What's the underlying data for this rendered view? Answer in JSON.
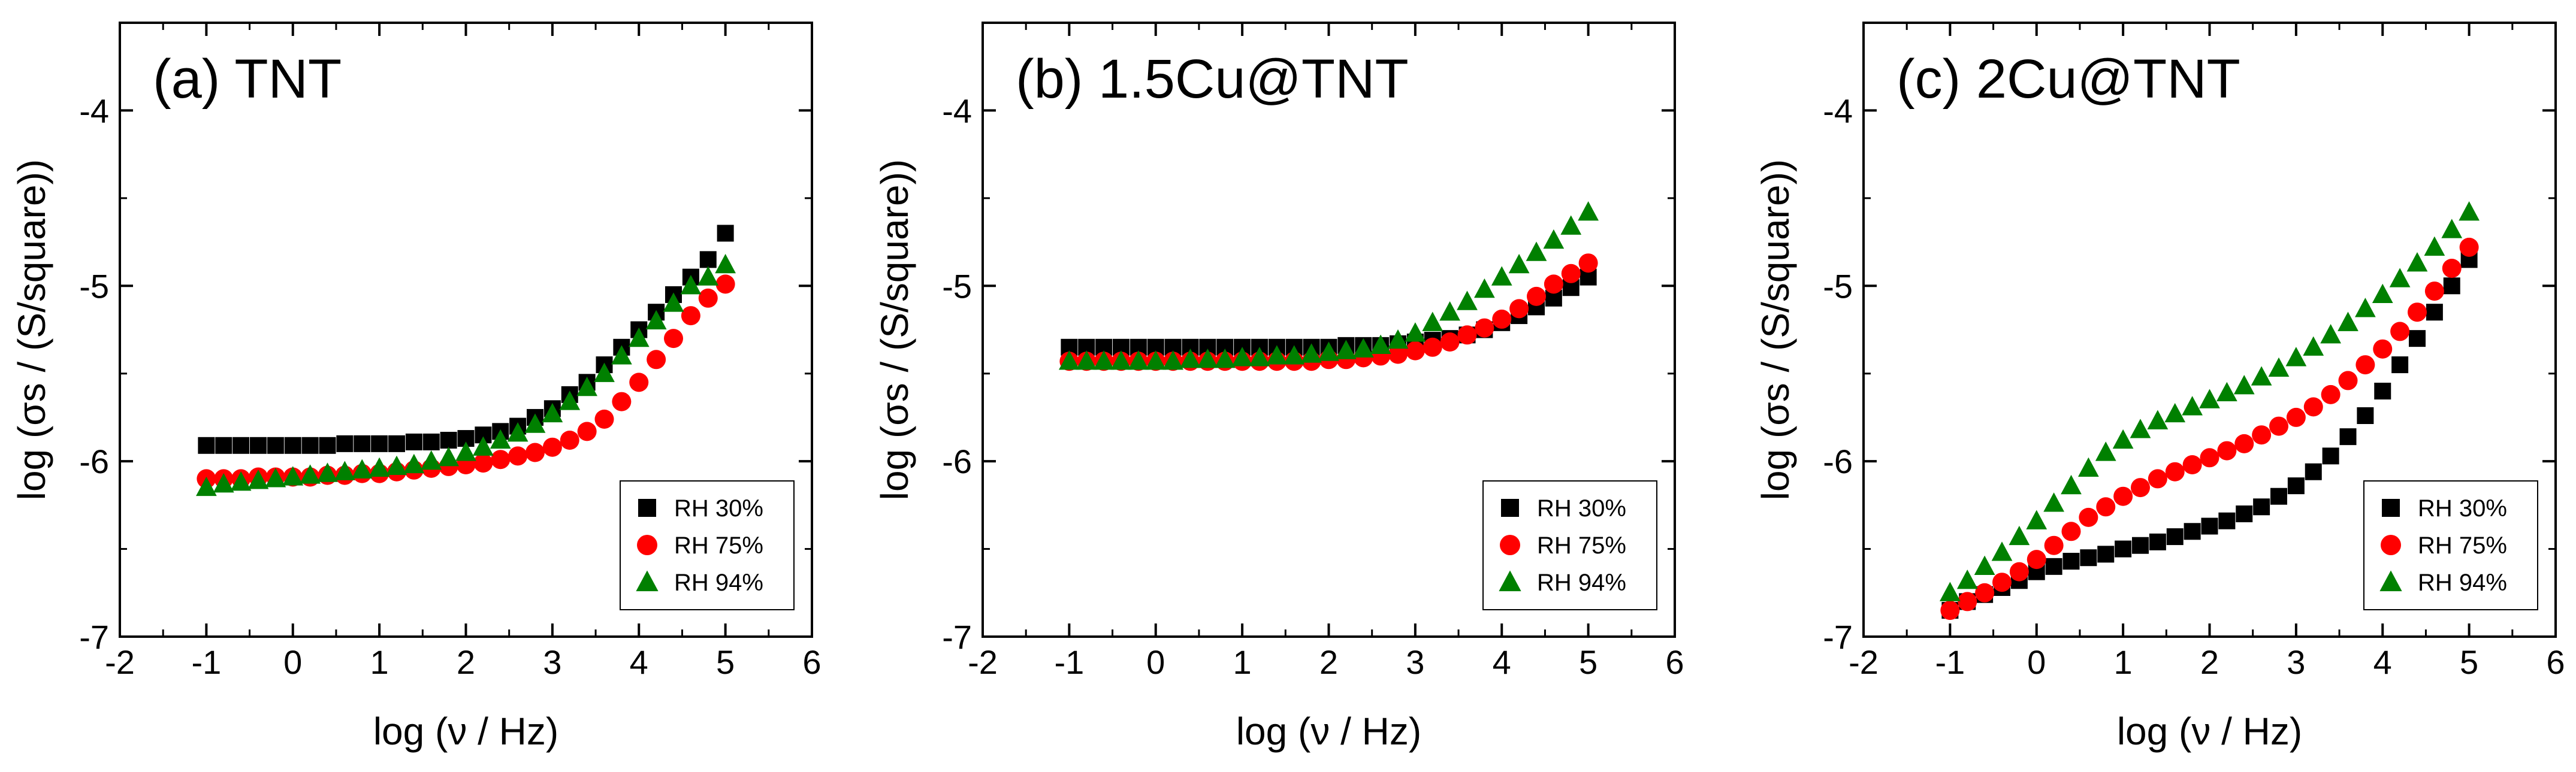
{
  "chart_data": [
    {
      "type": "scatter",
      "title": "(a) TNT",
      "xlabel": "log (ν / Hz)",
      "ylabel": "log (σs / (S/square))",
      "xlim": [
        -2,
        6
      ],
      "ylim": [
        -7,
        -3.5
      ],
      "x_ticks": [
        -2,
        -1,
        0,
        1,
        2,
        3,
        4,
        5,
        6
      ],
      "y_ticks": [
        -7,
        -6,
        -5,
        -4
      ],
      "x_tick_labels": [
        "-2",
        "-1",
        "0",
        "1",
        "2",
        "3",
        "4",
        "5",
        "6"
      ],
      "y_tick_labels": [
        "-7",
        "-6",
        "-5",
        "-4"
      ],
      "legend_position": "bottom-right",
      "series": [
        {
          "name": "RH 30%",
          "marker": "square",
          "color": "#000000",
          "x": [
            -1.0,
            -0.8,
            -0.6,
            -0.4,
            -0.2,
            0.0,
            0.2,
            0.4,
            0.6,
            0.8,
            1.0,
            1.2,
            1.4,
            1.6,
            1.8,
            2.0,
            2.2,
            2.4,
            2.6,
            2.8,
            3.0,
            3.2,
            3.4,
            3.6,
            3.8,
            4.0,
            4.2,
            4.4,
            4.6,
            4.8,
            5.0
          ],
          "y": [
            -5.91,
            -5.91,
            -5.91,
            -5.91,
            -5.91,
            -5.91,
            -5.91,
            -5.91,
            -5.9,
            -5.9,
            -5.9,
            -5.9,
            -5.89,
            -5.89,
            -5.88,
            -5.87,
            -5.85,
            -5.83,
            -5.8,
            -5.75,
            -5.7,
            -5.62,
            -5.55,
            -5.45,
            -5.35,
            -5.25,
            -5.15,
            -5.05,
            -4.95,
            -4.85,
            -4.7
          ]
        },
        {
          "name": "RH 75%",
          "marker": "circle",
          "color": "#ff0000",
          "x": [
            -1.0,
            -0.8,
            -0.6,
            -0.4,
            -0.2,
            0.0,
            0.2,
            0.4,
            0.6,
            0.8,
            1.0,
            1.2,
            1.4,
            1.6,
            1.8,
            2.0,
            2.2,
            2.4,
            2.6,
            2.8,
            3.0,
            3.2,
            3.4,
            3.6,
            3.8,
            4.0,
            4.2,
            4.4,
            4.6,
            4.8,
            5.0
          ],
          "y": [
            -6.1,
            -6.1,
            -6.1,
            -6.09,
            -6.09,
            -6.09,
            -6.09,
            -6.08,
            -6.08,
            -6.07,
            -6.07,
            -6.06,
            -6.05,
            -6.04,
            -6.03,
            -6.02,
            -6.01,
            -5.99,
            -5.97,
            -5.95,
            -5.92,
            -5.88,
            -5.83,
            -5.76,
            -5.66,
            -5.55,
            -5.42,
            -5.3,
            -5.17,
            -5.07,
            -4.99
          ]
        },
        {
          "name": "RH 94%",
          "marker": "triangle",
          "color": "#008000",
          "x": [
            -1.0,
            -0.8,
            -0.6,
            -0.4,
            -0.2,
            0.0,
            0.2,
            0.4,
            0.6,
            0.8,
            1.0,
            1.2,
            1.4,
            1.6,
            1.8,
            2.0,
            2.2,
            2.4,
            2.6,
            2.8,
            3.0,
            3.2,
            3.4,
            3.6,
            3.8,
            4.0,
            4.2,
            4.4,
            4.6,
            4.8,
            5.0
          ],
          "y": [
            -6.15,
            -6.13,
            -6.12,
            -6.11,
            -6.1,
            -6.09,
            -6.08,
            -6.07,
            -6.06,
            -6.05,
            -6.04,
            -6.03,
            -6.02,
            -6.0,
            -5.98,
            -5.95,
            -5.92,
            -5.88,
            -5.84,
            -5.79,
            -5.73,
            -5.66,
            -5.58,
            -5.5,
            -5.4,
            -5.3,
            -5.2,
            -5.1,
            -5.0,
            -4.95,
            -4.88
          ]
        }
      ],
      "legend": [
        "RH 30%",
        "RH 75%",
        "RH 94%"
      ]
    },
    {
      "type": "scatter",
      "title": "(b) 1.5Cu@TNT",
      "xlabel": "log (ν / Hz)",
      "ylabel": "log (σs / (S/square))",
      "xlim": [
        -2,
        6
      ],
      "ylim": [
        -7,
        -3.5
      ],
      "x_ticks": [
        -2,
        -1,
        0,
        1,
        2,
        3,
        4,
        5,
        6
      ],
      "y_ticks": [
        -7,
        -6,
        -5,
        -4
      ],
      "x_tick_labels": [
        "-2",
        "-1",
        "0",
        "1",
        "2",
        "3",
        "4",
        "5",
        "6"
      ],
      "y_tick_labels": [
        "-7",
        "-6",
        "-5",
        "-4"
      ],
      "legend_position": "bottom-right",
      "series": [
        {
          "name": "RH 30%",
          "marker": "square",
          "color": "#000000",
          "x": [
            -1.0,
            -0.8,
            -0.6,
            -0.4,
            -0.2,
            0.0,
            0.2,
            0.4,
            0.6,
            0.8,
            1.0,
            1.2,
            1.4,
            1.6,
            1.8,
            2.0,
            2.2,
            2.4,
            2.6,
            2.8,
            3.0,
            3.2,
            3.4,
            3.6,
            3.8,
            4.0,
            4.2,
            4.4,
            4.6,
            4.8,
            5.0
          ],
          "y": [
            -5.35,
            -5.35,
            -5.35,
            -5.35,
            -5.35,
            -5.35,
            -5.35,
            -5.35,
            -5.35,
            -5.35,
            -5.35,
            -5.35,
            -5.35,
            -5.35,
            -5.35,
            -5.35,
            -5.34,
            -5.34,
            -5.34,
            -5.33,
            -5.32,
            -5.31,
            -5.3,
            -5.28,
            -5.25,
            -5.21,
            -5.17,
            -5.12,
            -5.07,
            -5.01,
            -4.95
          ]
        },
        {
          "name": "RH 75%",
          "marker": "circle",
          "color": "#ff0000",
          "x": [
            -1.0,
            -0.8,
            -0.6,
            -0.4,
            -0.2,
            0.0,
            0.2,
            0.4,
            0.6,
            0.8,
            1.0,
            1.2,
            1.4,
            1.6,
            1.8,
            2.0,
            2.2,
            2.4,
            2.6,
            2.8,
            3.0,
            3.2,
            3.4,
            3.6,
            3.8,
            4.0,
            4.2,
            4.4,
            4.6,
            4.8,
            5.0
          ],
          "y": [
            -5.43,
            -5.43,
            -5.43,
            -5.43,
            -5.43,
            -5.43,
            -5.43,
            -5.43,
            -5.43,
            -5.43,
            -5.43,
            -5.43,
            -5.43,
            -5.43,
            -5.43,
            -5.42,
            -5.42,
            -5.41,
            -5.4,
            -5.39,
            -5.37,
            -5.35,
            -5.32,
            -5.28,
            -5.24,
            -5.19,
            -5.13,
            -5.06,
            -4.99,
            -4.93,
            -4.87
          ]
        },
        {
          "name": "RH 94%",
          "marker": "triangle",
          "color": "#008000",
          "x": [
            -1.0,
            -0.8,
            -0.6,
            -0.4,
            -0.2,
            0.0,
            0.2,
            0.4,
            0.6,
            0.8,
            1.0,
            1.2,
            1.4,
            1.6,
            1.8,
            2.0,
            2.2,
            2.4,
            2.6,
            2.8,
            3.0,
            3.2,
            3.4,
            3.6,
            3.8,
            4.0,
            4.2,
            4.4,
            4.6,
            4.8,
            5.0
          ],
          "y": [
            -5.43,
            -5.43,
            -5.43,
            -5.43,
            -5.43,
            -5.43,
            -5.43,
            -5.42,
            -5.42,
            -5.42,
            -5.41,
            -5.41,
            -5.4,
            -5.4,
            -5.39,
            -5.38,
            -5.37,
            -5.36,
            -5.34,
            -5.31,
            -5.27,
            -5.21,
            -5.15,
            -5.09,
            -5.02,
            -4.95,
            -4.88,
            -4.81,
            -4.74,
            -4.66,
            -4.58
          ]
        }
      ],
      "legend": [
        "RH 30%",
        "RH 75%",
        "RH 94%"
      ]
    },
    {
      "type": "scatter",
      "title": "(c) 2Cu@TNT",
      "xlabel": "log (ν / Hz)",
      "ylabel": "log (σs / (S/square))",
      "xlim": [
        -2,
        6
      ],
      "ylim": [
        -7,
        -3.5
      ],
      "x_ticks": [
        -2,
        -1,
        0,
        1,
        2,
        3,
        4,
        5,
        6
      ],
      "y_ticks": [
        -7,
        -6,
        -5,
        -4
      ],
      "x_tick_labels": [
        "-2",
        "-1",
        "0",
        "1",
        "2",
        "3",
        "4",
        "5",
        "6"
      ],
      "y_tick_labels": [
        "-7",
        "-6",
        "-5",
        "-4"
      ],
      "legend_position": "bottom-right",
      "series": [
        {
          "name": "RH 30%",
          "marker": "square",
          "color": "#000000",
          "x": [
            -1.0,
            -0.8,
            -0.6,
            -0.4,
            -0.2,
            0.0,
            0.2,
            0.4,
            0.6,
            0.8,
            1.0,
            1.2,
            1.4,
            1.6,
            1.8,
            2.0,
            2.2,
            2.4,
            2.6,
            2.8,
            3.0,
            3.2,
            3.4,
            3.6,
            3.8,
            4.0,
            4.2,
            4.4,
            4.6,
            4.8,
            5.0
          ],
          "y": [
            -6.85,
            -6.8,
            -6.76,
            -6.72,
            -6.68,
            -6.63,
            -6.6,
            -6.57,
            -6.55,
            -6.53,
            -6.5,
            -6.48,
            -6.46,
            -6.43,
            -6.4,
            -6.37,
            -6.34,
            -6.3,
            -6.26,
            -6.2,
            -6.14,
            -6.06,
            -5.97,
            -5.86,
            -5.74,
            -5.6,
            -5.45,
            -5.3,
            -5.15,
            -5.0,
            -4.85
          ]
        },
        {
          "name": "RH 75%",
          "marker": "circle",
          "color": "#ff0000",
          "x": [
            -1.0,
            -0.8,
            -0.6,
            -0.4,
            -0.2,
            0.0,
            0.2,
            0.4,
            0.6,
            0.8,
            1.0,
            1.2,
            1.4,
            1.6,
            1.8,
            2.0,
            2.2,
            2.4,
            2.6,
            2.8,
            3.0,
            3.2,
            3.4,
            3.6,
            3.8,
            4.0,
            4.2,
            4.4,
            4.6,
            4.8,
            5.0
          ],
          "y": [
            -6.85,
            -6.8,
            -6.75,
            -6.69,
            -6.63,
            -6.56,
            -6.48,
            -6.4,
            -6.32,
            -6.26,
            -6.2,
            -6.15,
            -6.1,
            -6.06,
            -6.02,
            -5.98,
            -5.94,
            -5.9,
            -5.85,
            -5.8,
            -5.75,
            -5.69,
            -5.62,
            -5.54,
            -5.45,
            -5.36,
            -5.26,
            -5.15,
            -5.03,
            -4.9,
            -4.78
          ]
        },
        {
          "name": "RH 94%",
          "marker": "triangle",
          "color": "#008000",
          "x": [
            -1.0,
            -0.8,
            -0.6,
            -0.4,
            -0.2,
            0.0,
            0.2,
            0.4,
            0.6,
            0.8,
            1.0,
            1.2,
            1.4,
            1.6,
            1.8,
            2.0,
            2.2,
            2.4,
            2.6,
            2.8,
            3.0,
            3.2,
            3.4,
            3.6,
            3.8,
            4.0,
            4.2,
            4.4,
            4.6,
            4.8,
            5.0
          ],
          "y": [
            -6.75,
            -6.68,
            -6.6,
            -6.52,
            -6.43,
            -6.34,
            -6.24,
            -6.14,
            -6.04,
            -5.95,
            -5.88,
            -5.82,
            -5.77,
            -5.73,
            -5.69,
            -5.65,
            -5.61,
            -5.57,
            -5.52,
            -5.47,
            -5.41,
            -5.35,
            -5.28,
            -5.21,
            -5.13,
            -5.05,
            -4.96,
            -4.87,
            -4.78,
            -4.68,
            -4.58
          ]
        }
      ],
      "legend": [
        "RH 30%",
        "RH 75%",
        "RH 94%"
      ]
    }
  ]
}
